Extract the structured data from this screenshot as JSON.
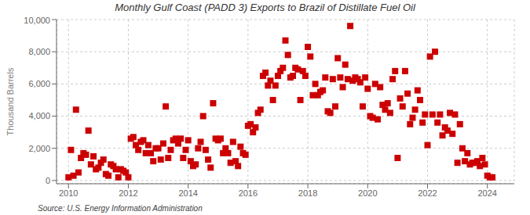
{
  "chart_data": {
    "type": "scatter",
    "title": "Monthly Gulf Coast (PADD 3) Exports to Brazil of Distillate Fuel Oil",
    "y_label": "Thousand Barrels",
    "annotations": [
      "Source: U.S. Energy Information Administration"
    ],
    "color": "#cc0000",
    "marker": "square",
    "grid": true,
    "xlim": [
      2009.6,
      2024.9
    ],
    "ylim": [
      -200,
      10000
    ],
    "xticks": [
      2010,
      2012,
      2014,
      2016,
      2018,
      2020,
      2022,
      2024
    ],
    "yticks": [
      0,
      {
        "value": 2000,
        "label": "2,000"
      },
      {
        "value": 4000,
        "label": "4,000"
      },
      {
        "value": 6000,
        "label": "6,000"
      },
      {
        "value": 8000,
        "label": "8,000"
      },
      {
        "value": 10000,
        "label": "10,000"
      }
    ],
    "x": [
      2010,
      2010.0833333333333,
      2010.1666666666667,
      2010.25,
      2010.3333333333333,
      2010.4166666666667,
      2010.5,
      2010.5833333333333,
      2010.6666666666667,
      2010.75,
      2010.8333333333333,
      2010.9166666666667,
      2011,
      2011.0833333333333,
      2011.1666666666667,
      2011.25,
      2011.3333333333333,
      2011.4166666666667,
      2011.5,
      2011.5833333333333,
      2011.6666666666667,
      2011.75,
      2011.8333333333333,
      2011.9166666666667,
      2012,
      2012.0833333333333,
      2012.1666666666667,
      2012.25,
      2012.3333333333333,
      2012.4166666666667,
      2012.5,
      2012.5833333333333,
      2012.6666666666667,
      2012.75,
      2012.8333333333333,
      2012.9166666666667,
      2013,
      2013.0833333333333,
      2013.1666666666667,
      2013.25,
      2013.3333333333333,
      2013.4166666666667,
      2013.5,
      2013.5833333333333,
      2013.6666666666667,
      2013.75,
      2013.8333333333333,
      2013.9166666666667,
      2014,
      2014.0833333333333,
      2014.1666666666667,
      2014.25,
      2014.3333333333333,
      2014.4166666666667,
      2014.5,
      2014.5833333333333,
      2014.6666666666667,
      2014.75,
      2014.8333333333333,
      2014.9166666666667,
      2015,
      2015.0833333333333,
      2015.1666666666667,
      2015.25,
      2015.3333333333333,
      2015.4166666666667,
      2015.5,
      2015.5833333333333,
      2015.6666666666667,
      2015.75,
      2015.8333333333333,
      2015.9166666666667,
      2016,
      2016.0833333333333,
      2016.1666666666667,
      2016.25,
      2016.3333333333333,
      2016.4166666666667,
      2016.5,
      2016.5833333333333,
      2016.6666666666667,
      2016.75,
      2016.8333333333333,
      2016.9166666666667,
      2017,
      2017.0833333333333,
      2017.1666666666667,
      2017.25,
      2017.3333333333333,
      2017.4166666666667,
      2017.5,
      2017.5833333333333,
      2017.6666666666667,
      2017.75,
      2017.8333333333333,
      2017.9166666666667,
      2018,
      2018.0833333333333,
      2018.1666666666667,
      2018.25,
      2018.3333333333333,
      2018.4166666666667,
      2018.5,
      2018.5833333333333,
      2018.6666666666667,
      2018.75,
      2018.8333333333333,
      2018.9166666666667,
      2019,
      2019.0833333333333,
      2019.1666666666667,
      2019.25,
      2019.3333333333333,
      2019.4166666666667,
      2019.5,
      2019.5833333333333,
      2019.6666666666667,
      2019.75,
      2019.8333333333333,
      2019.9166666666667,
      2020,
      2020.0833333333333,
      2020.1666666666667,
      2020.25,
      2020.3333333333333,
      2020.4166666666667,
      2020.5,
      2020.5833333333333,
      2020.6666666666667,
      2020.75,
      2020.8333333333333,
      2020.9166666666667,
      2021,
      2021.0833333333333,
      2021.1666666666667,
      2021.25,
      2021.3333333333333,
      2021.4166666666667,
      2021.5,
      2021.5833333333333,
      2021.6666666666667,
      2021.75,
      2021.8333333333333,
      2021.9166666666667,
      2022,
      2022.0833333333333,
      2022.1666666666667,
      2022.25,
      2022.3333333333333,
      2022.4166666666667,
      2022.5,
      2022.5833333333333,
      2022.6666666666667,
      2022.75,
      2022.8333333333333,
      2022.9166666666667,
      2023,
      2023.0833333333333,
      2023.1666666666667,
      2023.25,
      2023.3333333333333,
      2023.4166666666667,
      2023.5,
      2023.5833333333333,
      2023.6666666666667,
      2023.75,
      2023.8333333333333,
      2023.9166666666667,
      2024,
      2024.0833333333333,
      2024.1666666666667
    ],
    "values": [
      200,
      1900,
      300,
      4400,
      500,
      1400,
      1700,
      1600,
      3100,
      1000,
      1500,
      700,
      800,
      1100,
      1300,
      400,
      300,
      1000,
      900,
      700,
      200,
      700,
      600,
      500,
      200,
      2600,
      2700,
      2200,
      1900,
      2400,
      2500,
      1700,
      2200,
      1700,
      1200,
      2000,
      2000,
      1300,
      2300,
      4600,
      1400,
      1900,
      2500,
      2600,
      2300,
      2600,
      1400,
      1900,
      2500,
      1200,
      900,
      1000,
      2000,
      2400,
      4000,
      1900,
      1300,
      800,
      4800,
      2600,
      2500,
      2600,
      1700,
      2000,
      1700,
      1100,
      2400,
      1200,
      900,
      2100,
      1700,
      1600,
      3400,
      3500,
      3000,
      3300,
      4200,
      4400,
      6500,
      6700,
      5900,
      6200,
      5000,
      5900,
      6500,
      6800,
      7000,
      8700,
      7800,
      6400,
      6500,
      7000,
      6900,
      5000,
      6800,
      6500,
      8300,
      7700,
      5300,
      6000,
      5300,
      5500,
      5600,
      6400,
      4300,
      4200,
      6300,
      4600,
      7600,
      6400,
      5800,
      7200,
      6300,
      9600,
      6200,
      6400,
      6300,
      6100,
      4600,
      6400,
      5700,
      4000,
      3900,
      6000,
      3800,
      5800,
      4700,
      4400,
      4800,
      4200,
      6300,
      6800,
      1400,
      5100,
      4600,
      6800,
      5400,
      3500,
      3900,
      4400,
      5600,
      5000,
      3600,
      4100,
      2200,
      7700,
      4100,
      8000,
      3600,
      4100,
      2800,
      3300,
      3100,
      4200,
      2900,
      4100,
      1100,
      3500,
      2000,
      1200,
      1700,
      1000,
      1100,
      1100,
      1200,
      900,
      1400,
      1000,
      300,
      200,
      200
    ]
  }
}
